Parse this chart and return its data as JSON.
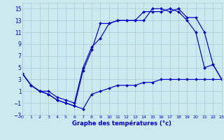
{
  "title": "Graphe des températures (°c)",
  "bg_color": "#cde9f0",
  "grid_color": "#aacfdc",
  "line_color": "#0000cc",
  "xlim": [
    0,
    23
  ],
  "ylim": [
    -3,
    16
  ],
  "xticks": [
    0,
    1,
    2,
    3,
    4,
    5,
    6,
    7,
    8,
    9,
    10,
    11,
    12,
    13,
    14,
    15,
    16,
    17,
    18,
    19,
    20,
    21,
    22,
    23
  ],
  "yticks": [
    -3,
    -1,
    1,
    3,
    5,
    7,
    9,
    11,
    13,
    15
  ],
  "line1_x": [
    0,
    1,
    2,
    3,
    4,
    5,
    6,
    7,
    8,
    9,
    10,
    11,
    12,
    13,
    14,
    15,
    16,
    17,
    18,
    19,
    20,
    21,
    22,
    23
  ],
  "line1_y": [
    4,
    2,
    1,
    0.5,
    -0.5,
    -1.0,
    -1.5,
    -2.0,
    0.5,
    1.0,
    1.5,
    2.0,
    2.0,
    2.0,
    2.5,
    2.5,
    3.0,
    3.0,
    3.0,
    3.0,
    3.0,
    3.0,
    3.0,
    3.0
  ],
  "line2_x": [
    0,
    1,
    2,
    3,
    4,
    5,
    6,
    7,
    8,
    9,
    10,
    11,
    12,
    13,
    14,
    15,
    16,
    17,
    18,
    19,
    20,
    21,
    22,
    23
  ],
  "line2_y": [
    4,
    2,
    1,
    1.0,
    0.0,
    -0.5,
    -1.0,
    5.0,
    8.5,
    10.0,
    12.5,
    13.0,
    13.0,
    13.0,
    13.0,
    15.0,
    15.0,
    14.5,
    15.0,
    13.5,
    13.5,
    11.0,
    5.5,
    3.0
  ],
  "line3_x": [
    0,
    1,
    2,
    3,
    4,
    5,
    6,
    7,
    8,
    9,
    10,
    11,
    12,
    13,
    14,
    15,
    16,
    17,
    18,
    19,
    20,
    21,
    22,
    23
  ],
  "line3_y": [
    4,
    2,
    1,
    0.5,
    -0.5,
    -1.0,
    -1.5,
    4.5,
    8.0,
    12.5,
    12.5,
    13.0,
    13.0,
    13.0,
    14.5,
    14.5,
    14.5,
    15.0,
    14.5,
    13.0,
    11.0,
    5.0,
    5.5,
    3.0
  ]
}
